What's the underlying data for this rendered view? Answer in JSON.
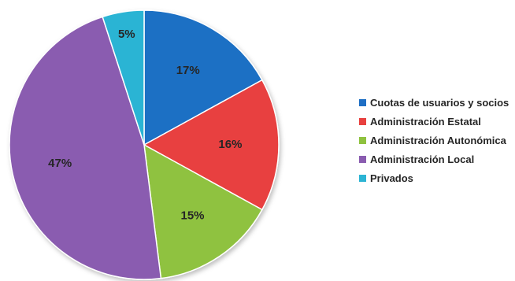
{
  "chart_data": {
    "type": "pie",
    "slices": [
      {
        "name": "Cuotas de usuarios y socios",
        "value": 17,
        "label": "17%",
        "color": "#1f6fc4"
      },
      {
        "name": "Administración Estatal",
        "value": 16,
        "label": "16%",
        "color": "#e8413f"
      },
      {
        "name": "Administración Autonómica",
        "value": 15,
        "label": "15%",
        "color": "#8fc23f"
      },
      {
        "name": "Administración Local",
        "value": 47,
        "label": "47%",
        "color": "#8a5cb0"
      },
      {
        "name": "Privados",
        "value": 5,
        "label": "5%",
        "color": "#2cb4d4"
      }
    ],
    "title": "",
    "legend_position": "right",
    "start_angle_deg": 0,
    "direction": "clockwise"
  }
}
